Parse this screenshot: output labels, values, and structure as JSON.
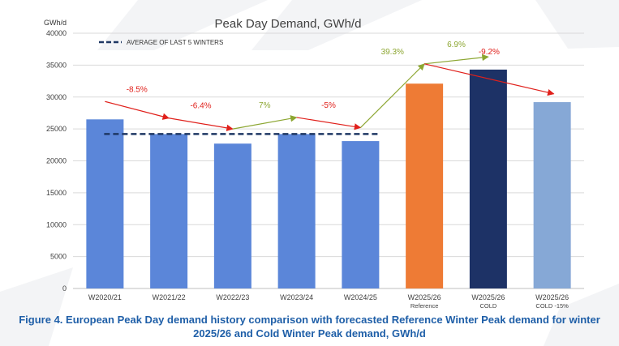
{
  "figure": {
    "caption_line1": "Figure 4. European Peak Day demand history comparison with forecasted Reference Winter Peak demand for winter",
    "caption_line2": "2025/26 and Cold Winter Peak demand, GWh/d"
  },
  "colors": {
    "historical": "#5b86d9",
    "reference": "#ee7b35",
    "cold": "#1d3266",
    "cold_minus_15": "#86a8d6",
    "decrease": "#e0201b",
    "increase": "#8ca631",
    "average_line": "#1f3864",
    "caption": "#1f5fa8"
  },
  "chart_data": {
    "type": "bar",
    "title": "Peak Day Demand, GWh/d",
    "ylabel": "GWh/d",
    "xlabel": "",
    "ylim": [
      0,
      40000
    ],
    "yticks": [
      0,
      5000,
      10000,
      15000,
      20000,
      25000,
      30000,
      35000,
      40000
    ],
    "grid": true,
    "categories": [
      [
        "W2020/21"
      ],
      [
        "W2021/22"
      ],
      [
        "W2022/23"
      ],
      [
        "W2023/24"
      ],
      [
        "W2024/25"
      ],
      [
        "W2025/26",
        "Reference"
      ],
      [
        "W2025/26",
        "COLD"
      ],
      [
        "W2025/26",
        "COLD -15%"
      ]
    ],
    "values": [
      26500,
      24200,
      22700,
      24200,
      23100,
      32100,
      34300,
      29200
    ],
    "bar_color_keys": [
      "historical",
      "historical",
      "historical",
      "historical",
      "historical",
      "reference",
      "cold",
      "cold_minus_15"
    ],
    "average_line": {
      "label": "AVERAGE OF LAST 5 WINTERS",
      "value": 24200,
      "from_index": 0,
      "to_index": 4
    },
    "changes": [
      {
        "label": "-8.5%",
        "from_index": 0,
        "to_index": 1,
        "from_value": 29300,
        "to_value": 26700,
        "direction": "down"
      },
      {
        "label": "-6.4%",
        "from_index": 1,
        "to_index": 2,
        "from_value": 26700,
        "to_value": 25000,
        "direction": "down"
      },
      {
        "label": "7%",
        "from_index": 2,
        "to_index": 3,
        "from_value": 25000,
        "to_value": 26800,
        "direction": "up"
      },
      {
        "label": "-5%",
        "from_index": 3,
        "to_index": 4,
        "from_value": 26800,
        "to_value": 25200,
        "direction": "down"
      },
      {
        "label": "39.3%",
        "from_index": 4,
        "to_index": 5,
        "from_value": 25200,
        "to_value": 35200,
        "direction": "up"
      },
      {
        "label": "6.9%",
        "from_index": 5,
        "to_index": 6,
        "from_value": 35200,
        "to_value": 36300,
        "direction": "up"
      },
      {
        "label": "-9.2%",
        "from_index": 5,
        "to_index": 7,
        "from_value": 35200,
        "to_value": 30500,
        "direction": "down"
      }
    ]
  }
}
